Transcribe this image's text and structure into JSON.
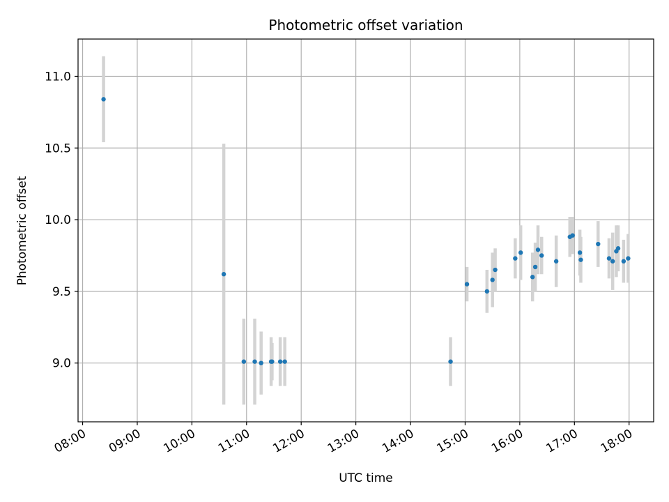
{
  "chart_data": {
    "type": "scatter",
    "title": "Photometric offset variation",
    "xlabel": "UTC time",
    "ylabel": "Photometric offset",
    "grid": true,
    "xlim": [
      "07:55",
      "18:27"
    ],
    "ylim": [
      8.59,
      11.26
    ],
    "x_ticks": [
      "08:00",
      "09:00",
      "10:00",
      "11:00",
      "12:00",
      "13:00",
      "14:00",
      "15:00",
      "16:00",
      "17:00",
      "18:00"
    ],
    "y_ticks": [
      "9.0",
      "9.5",
      "10.0",
      "10.5",
      "11.0"
    ],
    "colors": {
      "point": "#1f77b4",
      "errorbar": "#d3d3d3",
      "grid": "#b0b0b0"
    },
    "series": [
      {
        "points": [
          {
            "x": "08:23",
            "y": 10.84,
            "err": 0.3
          },
          {
            "x": "10:35",
            "y": 9.62,
            "err": 0.91
          },
          {
            "x": "10:57",
            "y": 9.01,
            "err": 0.3
          },
          {
            "x": "11:09",
            "y": 9.01,
            "err": 0.3
          },
          {
            "x": "11:16",
            "y": 9.0,
            "err": 0.22
          },
          {
            "x": "11:27",
            "y": 9.01,
            "err": 0.17
          },
          {
            "x": "11:28",
            "y": 9.01,
            "err": 0.13
          },
          {
            "x": "11:37",
            "y": 9.01,
            "err": 0.17
          },
          {
            "x": "11:42",
            "y": 9.01,
            "err": 0.17
          },
          {
            "x": "14:44",
            "y": 9.01,
            "err": 0.17
          },
          {
            "x": "15:02",
            "y": 9.55,
            "err": 0.12
          },
          {
            "x": "15:24",
            "y": 9.5,
            "err": 0.15
          },
          {
            "x": "15:30",
            "y": 9.58,
            "err": 0.19
          },
          {
            "x": "15:33",
            "y": 9.65,
            "err": 0.15
          },
          {
            "x": "15:55",
            "y": 9.73,
            "err": 0.14
          },
          {
            "x": "16:01",
            "y": 9.77,
            "err": 0.19
          },
          {
            "x": "16:14",
            "y": 9.6,
            "err": 0.17
          },
          {
            "x": "16:17",
            "y": 9.67,
            "err": 0.17
          },
          {
            "x": "16:20",
            "y": 9.79,
            "err": 0.17
          },
          {
            "x": "16:24",
            "y": 9.75,
            "err": 0.13
          },
          {
            "x": "16:40",
            "y": 9.71,
            "err": 0.18
          },
          {
            "x": "16:55",
            "y": 9.88,
            "err": 0.14
          },
          {
            "x": "16:58",
            "y": 9.89,
            "err": 0.13
          },
          {
            "x": "17:06",
            "y": 9.77,
            "err": 0.16
          },
          {
            "x": "17:07",
            "y": 9.72,
            "err": 0.16
          },
          {
            "x": "17:26",
            "y": 9.83,
            "err": 0.16
          },
          {
            "x": "17:38",
            "y": 9.73,
            "err": 0.14
          },
          {
            "x": "17:42",
            "y": 9.71,
            "err": 0.2
          },
          {
            "x": "17:46",
            "y": 9.78,
            "err": 0.18
          },
          {
            "x": "17:48",
            "y": 9.8,
            "err": 0.16
          },
          {
            "x": "17:54",
            "y": 9.71,
            "err": 0.15
          },
          {
            "x": "17:59",
            "y": 9.73,
            "err": 0.17
          }
        ]
      }
    ]
  }
}
